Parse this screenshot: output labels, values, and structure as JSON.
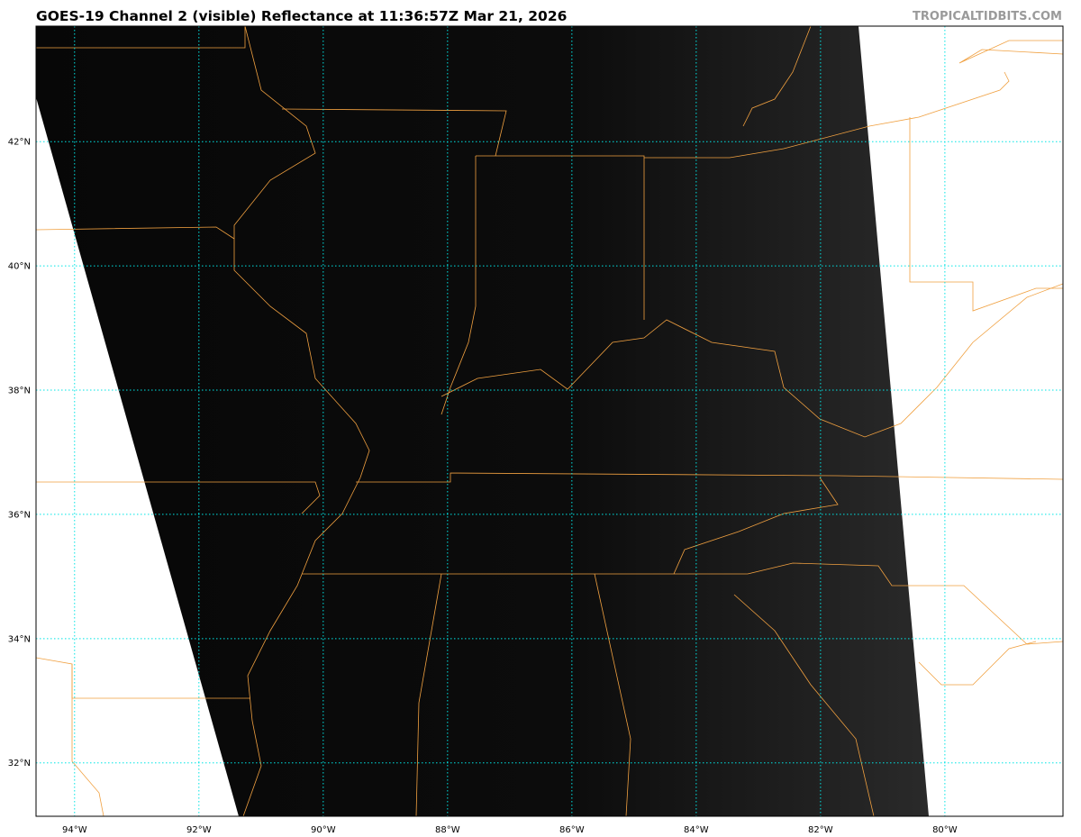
{
  "title": "GOES-19 Channel 2 (visible) Reflectance at 11:36:57Z Mar 21, 2026",
  "credit": "TROPICALTIDBITS.COM",
  "map": {
    "extent": {
      "lon_min": -94.62,
      "lon_max": -78.1,
      "lat_min": 31.14,
      "lat_max": 43.86
    },
    "lon_ticks": [
      {
        "value": -94,
        "label": "94°W"
      },
      {
        "value": -92,
        "label": "92°W"
      },
      {
        "value": -90,
        "label": "90°W"
      },
      {
        "value": -88,
        "label": "88°W"
      },
      {
        "value": -86,
        "label": "86°W"
      },
      {
        "value": -84,
        "label": "84°W"
      },
      {
        "value": -82,
        "label": "82°W"
      },
      {
        "value": -80,
        "label": "80°W"
      }
    ],
    "lat_ticks": [
      {
        "value": 42,
        "label": "42°N"
      },
      {
        "value": 40,
        "label": "40°N"
      },
      {
        "value": 38,
        "label": "38°N"
      },
      {
        "value": 36,
        "label": "36°N"
      },
      {
        "value": 34,
        "label": "34°N"
      },
      {
        "value": 32,
        "label": "32°N"
      }
    ],
    "colors": {
      "grid": "#00e5e5",
      "borders": "#f0a040",
      "no_data": "#ffffff",
      "imagery_dark": "#080808",
      "imagery_light": "#2a2a2a"
    }
  }
}
